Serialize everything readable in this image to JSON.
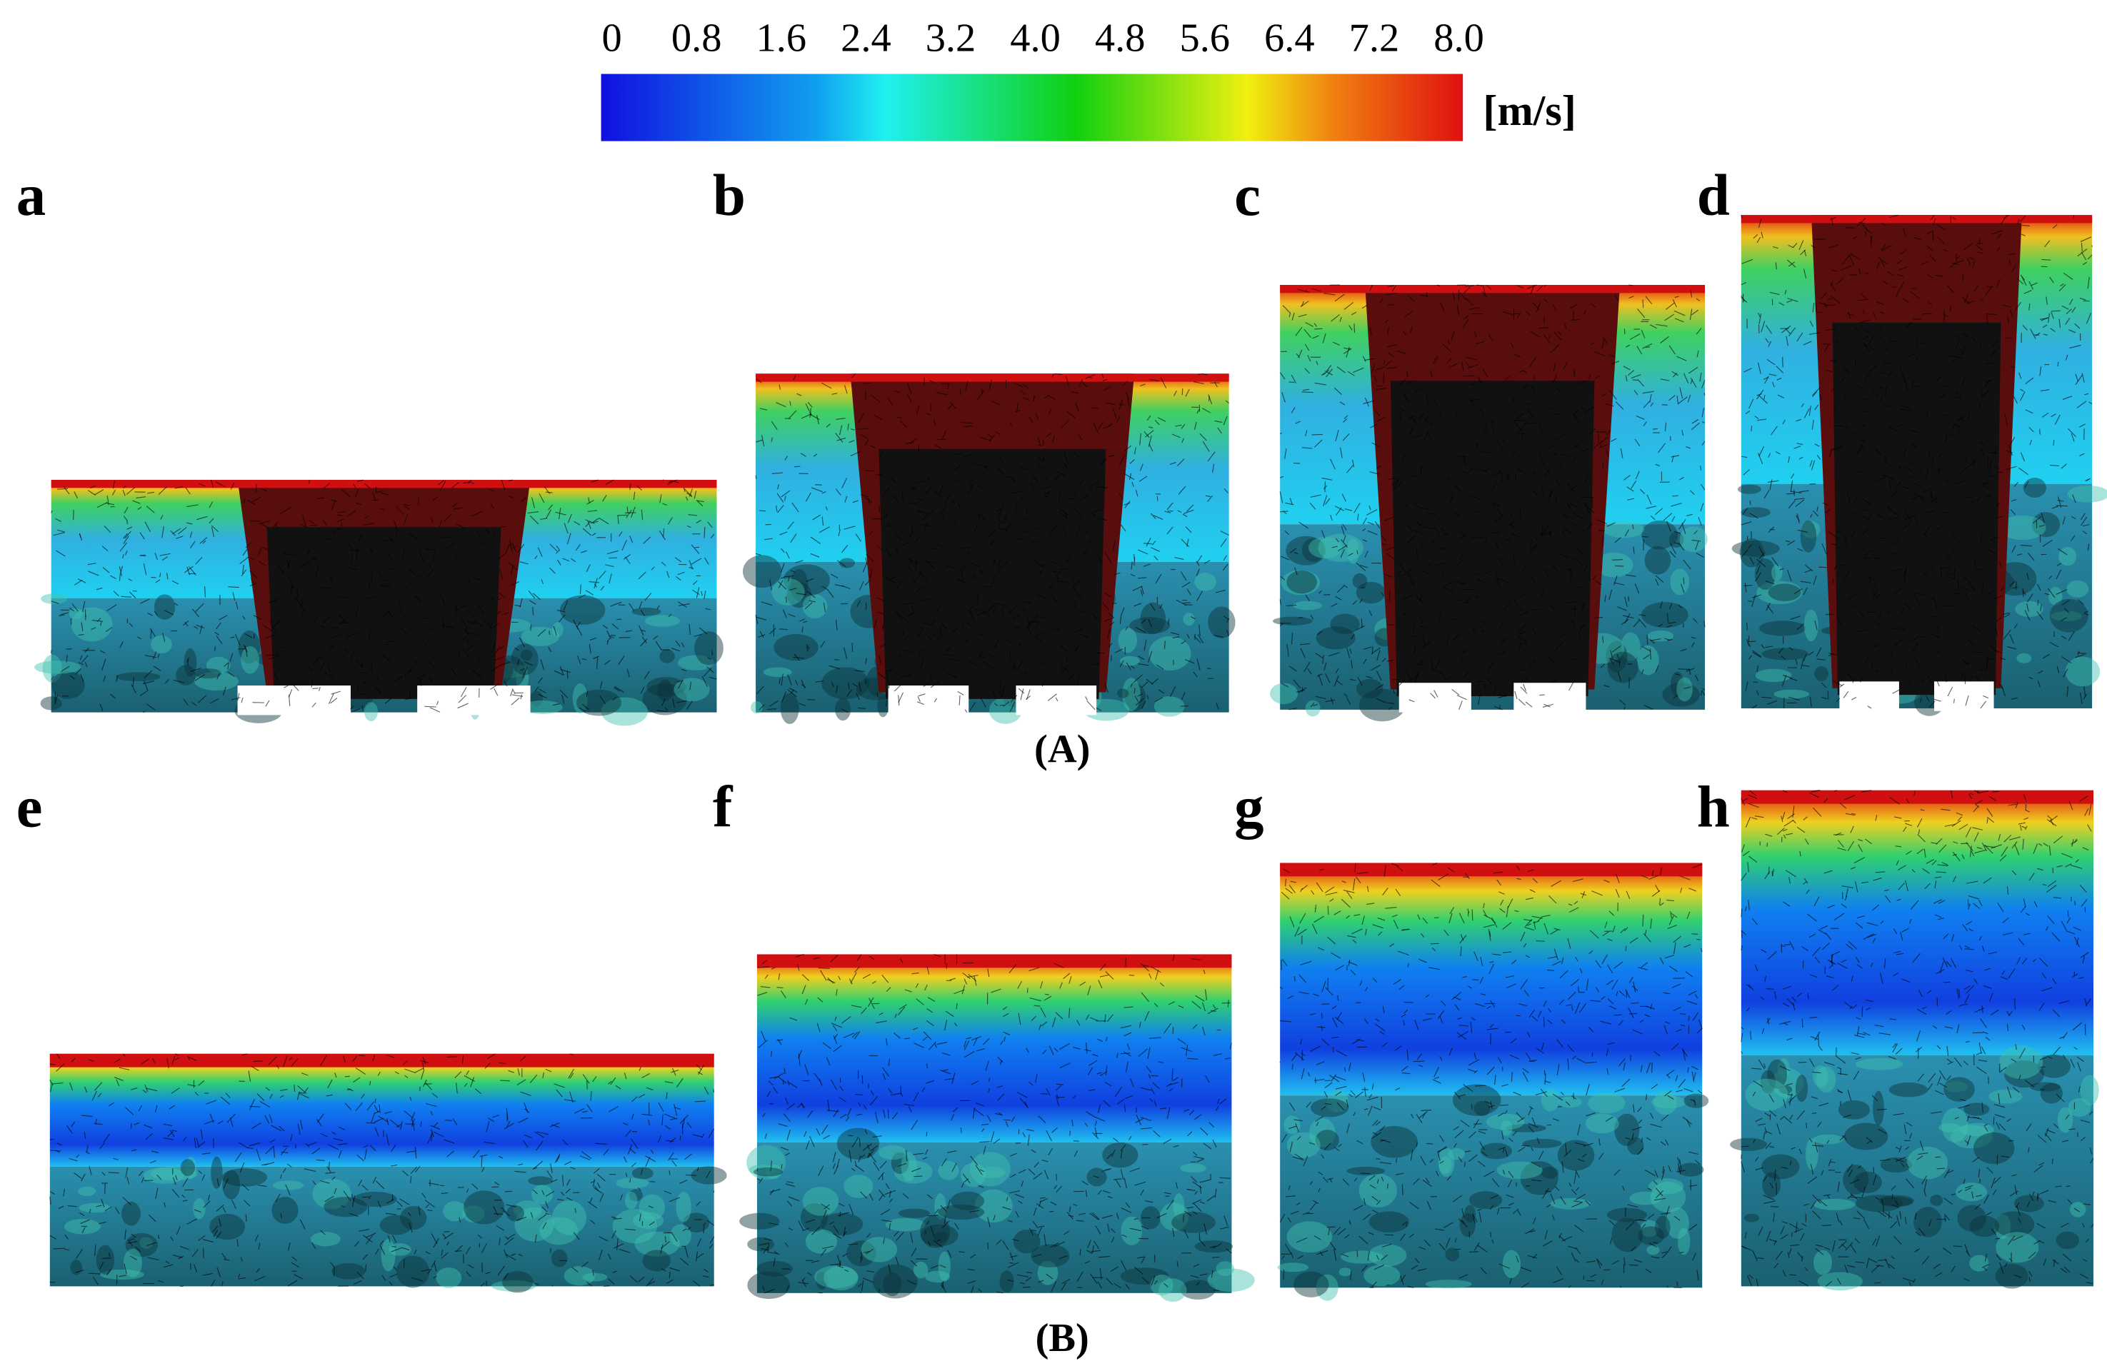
{
  "colorbar": {
    "range": [
      0,
      8
    ],
    "ticks": [
      0,
      0.8,
      1.6,
      2.4,
      3.2,
      {
        "value": 4,
        "label": "4.0"
      },
      4.8,
      5.6,
      6.4,
      7.2,
      {
        "value": 8,
        "label": "8.0"
      }
    ],
    "unit": "[m/s]"
  },
  "panels": [
    {
      "label": "a"
    },
    {
      "label": "b"
    },
    {
      "label": "c"
    },
    {
      "label": "d"
    },
    {
      "label": "e"
    },
    {
      "label": "f"
    },
    {
      "label": "g"
    },
    {
      "label": "h"
    }
  ],
  "captions": [
    "(A)",
    "(B)"
  ]
}
